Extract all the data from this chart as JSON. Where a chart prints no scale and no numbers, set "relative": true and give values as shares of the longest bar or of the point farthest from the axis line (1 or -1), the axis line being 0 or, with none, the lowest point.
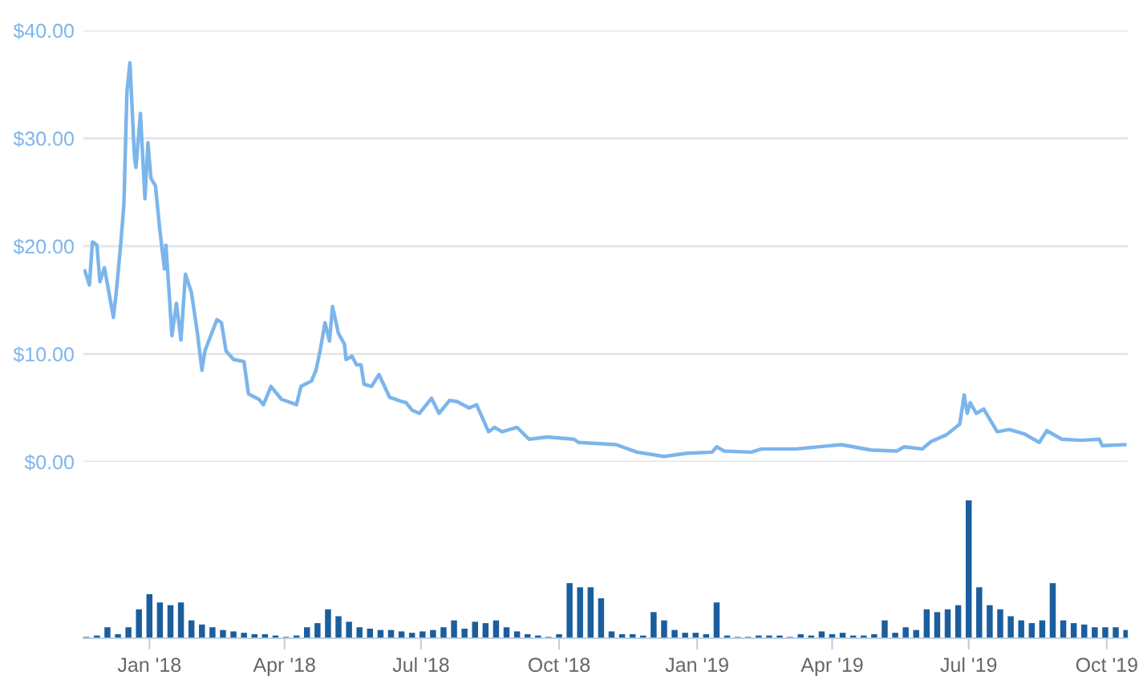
{
  "chart_data": [
    {
      "type": "line",
      "grid": "y",
      "tick_labels": "y",
      "xlim": [
        "2017-11-18",
        "2019-10-15"
      ],
      "ylim": [
        0,
        40
      ],
      "yticks": [
        {
          "value": 0,
          "label": "$0.00"
        },
        {
          "value": 10,
          "label": "$10.00"
        },
        {
          "value": 20,
          "label": "$20.00"
        },
        {
          "value": 30,
          "label": "$30.00"
        },
        {
          "value": 40,
          "label": "$40.00"
        }
      ],
      "series": [
        {
          "color": "#7cb5ec",
          "x": [
            "2017-11-19",
            "2017-11-22",
            "2017-11-24",
            "2017-11-27",
            "2017-11-29",
            "2017-12-02",
            "2017-12-08",
            "2017-12-10",
            "2017-12-13",
            "2017-12-15",
            "2017-12-17",
            "2017-12-19",
            "2017-12-22",
            "2017-12-23",
            "2017-12-26",
            "2017-12-29",
            "2017-12-31",
            "2018-01-02",
            "2018-01-05",
            "2018-01-08",
            "2018-01-11",
            "2018-01-12",
            "2018-01-16",
            "2018-01-19",
            "2018-01-22",
            "2018-01-25",
            "2018-01-29",
            "2018-02-02",
            "2018-02-05",
            "2018-02-07",
            "2018-02-15",
            "2018-02-18",
            "2018-02-21",
            "2018-02-26",
            "2018-03-05",
            "2018-03-08",
            "2018-03-15",
            "2018-03-18",
            "2018-03-23",
            "2018-03-30",
            "2018-04-09",
            "2018-04-12",
            "2018-04-19",
            "2018-04-22",
            "2018-04-25",
            "2018-04-28",
            "2018-05-01",
            "2018-05-03",
            "2018-05-07",
            "2018-05-11",
            "2018-05-12",
            "2018-05-16",
            "2018-05-19",
            "2018-05-22",
            "2018-05-24",
            "2018-05-29",
            "2018-06-03",
            "2018-06-10",
            "2018-06-18",
            "2018-06-21",
            "2018-06-25",
            "2018-06-30",
            "2018-07-08",
            "2018-07-13",
            "2018-07-20",
            "2018-07-25",
            "2018-08-02",
            "2018-08-07",
            "2018-08-15",
            "2018-08-19",
            "2018-08-24",
            "2018-09-03",
            "2018-09-11",
            "2018-09-23",
            "2018-10-11",
            "2018-10-14",
            "2018-11-08",
            "2018-11-22",
            "2018-12-10",
            "2018-12-25",
            "2019-01-11",
            "2019-01-14",
            "2019-01-19",
            "2019-02-06",
            "2019-02-13",
            "2019-03-08",
            "2019-04-07",
            "2019-04-27",
            "2019-05-14",
            "2019-05-19",
            "2019-05-31",
            "2019-06-06",
            "2019-06-16",
            "2019-06-25",
            "2019-06-28",
            "2019-06-30",
            "2019-07-02",
            "2019-07-06",
            "2019-07-11",
            "2019-07-20",
            "2019-07-28",
            "2019-08-07",
            "2019-08-17",
            "2019-08-22",
            "2019-09-01",
            "2019-09-14",
            "2019-09-26",
            "2019-09-28",
            "2019-10-13"
          ],
          "values": [
            17.7,
            16.4,
            20.4,
            20.1,
            16.7,
            18.0,
            13.4,
            15.9,
            20.4,
            23.9,
            34.3,
            37.0,
            28.3,
            27.3,
            32.3,
            24.4,
            29.6,
            26.3,
            25.6,
            21.4,
            17.9,
            20.1,
            11.7,
            14.7,
            11.3,
            17.4,
            15.7,
            11.9,
            8.5,
            10.3,
            13.2,
            12.9,
            10.3,
            9.5,
            9.3,
            6.3,
            5.8,
            5.3,
            7.0,
            5.8,
            5.3,
            7.0,
            7.5,
            8.5,
            10.5,
            12.9,
            11.2,
            14.4,
            11.9,
            10.9,
            9.5,
            9.8,
            9.0,
            9.0,
            7.2,
            7.0,
            8.1,
            6.0,
            5.6,
            5.5,
            4.8,
            4.5,
            5.9,
            4.5,
            5.7,
            5.6,
            5.0,
            5.3,
            2.8,
            3.2,
            2.8,
            3.2,
            2.1,
            2.3,
            2.1,
            1.8,
            1.6,
            0.9,
            0.5,
            0.8,
            0.9,
            1.4,
            1.0,
            0.9,
            1.2,
            1.2,
            1.6,
            1.1,
            1.0,
            1.4,
            1.2,
            1.9,
            2.5,
            3.5,
            6.2,
            4.5,
            5.5,
            4.5,
            4.9,
            2.8,
            3.0,
            2.6,
            1.8,
            2.9,
            2.1,
            2.0,
            2.1,
            1.5,
            1.6
          ]
        }
      ]
    },
    {
      "type": "bar",
      "relative": true,
      "grid": false,
      "tick_labels": "x",
      "xlim": [
        "2017-11-18",
        "2019-10-15"
      ],
      "xticks": [
        {
          "value": "2018-01-01",
          "label": "Jan '18"
        },
        {
          "value": "2018-04-01",
          "label": "Apr '18"
        },
        {
          "value": "2018-07-01",
          "label": "Jul '18"
        },
        {
          "value": "2018-10-01",
          "label": "Oct '18"
        },
        {
          "value": "2019-01-01",
          "label": "Jan '19"
        },
        {
          "value": "2019-04-01",
          "label": "Apr '19"
        },
        {
          "value": "2019-07-01",
          "label": "Jul '19"
        },
        {
          "value": "2019-10-01",
          "label": "Oct '19"
        }
      ],
      "series": [
        {
          "color": "#1b5e9e",
          "x": [
            "2017-11-20",
            "2017-11-27",
            "2017-12-04",
            "2017-12-11",
            "2017-12-18",
            "2017-12-25",
            "2018-01-01",
            "2018-01-08",
            "2018-01-15",
            "2018-01-22",
            "2018-01-29",
            "2018-02-05",
            "2018-02-12",
            "2018-02-19",
            "2018-02-26",
            "2018-03-05",
            "2018-03-12",
            "2018-03-19",
            "2018-03-26",
            "2018-04-02",
            "2018-04-09",
            "2018-04-16",
            "2018-04-23",
            "2018-04-30",
            "2018-05-07",
            "2018-05-14",
            "2018-05-21",
            "2018-05-28",
            "2018-06-04",
            "2018-06-11",
            "2018-06-18",
            "2018-06-25",
            "2018-07-02",
            "2018-07-09",
            "2018-07-16",
            "2018-07-23",
            "2018-07-30",
            "2018-08-06",
            "2018-08-13",
            "2018-08-20",
            "2018-08-27",
            "2018-09-03",
            "2018-09-10",
            "2018-09-17",
            "2018-09-24",
            "2018-10-01",
            "2018-10-08",
            "2018-10-15",
            "2018-10-22",
            "2018-10-29",
            "2018-11-05",
            "2018-11-12",
            "2018-11-19",
            "2018-11-26",
            "2018-12-03",
            "2018-12-10",
            "2018-12-17",
            "2018-12-24",
            "2018-12-31",
            "2019-01-07",
            "2019-01-14",
            "2019-01-21",
            "2019-01-28",
            "2019-02-04",
            "2019-02-11",
            "2019-02-18",
            "2019-02-25",
            "2019-03-04",
            "2019-03-11",
            "2019-03-18",
            "2019-03-25",
            "2019-04-01",
            "2019-04-08",
            "2019-04-15",
            "2019-04-22",
            "2019-04-29",
            "2019-05-06",
            "2019-05-13",
            "2019-05-20",
            "2019-05-27",
            "2019-06-03",
            "2019-06-10",
            "2019-06-17",
            "2019-06-24",
            "2019-07-01",
            "2019-07-08",
            "2019-07-15",
            "2019-07-22",
            "2019-07-29",
            "2019-08-05",
            "2019-08-12",
            "2019-08-19",
            "2019-08-26",
            "2019-09-02",
            "2019-09-09",
            "2019-09-16",
            "2019-09-23",
            "2019-09-30",
            "2019-10-07",
            "2019-10-14"
          ],
          "values": [
            0.01,
            0.02,
            0.08,
            0.03,
            0.08,
            0.21,
            0.32,
            0.26,
            0.24,
            0.26,
            0.13,
            0.1,
            0.08,
            0.06,
            0.05,
            0.04,
            0.03,
            0.03,
            0.02,
            0.01,
            0.02,
            0.08,
            0.11,
            0.21,
            0.16,
            0.12,
            0.08,
            0.07,
            0.06,
            0.06,
            0.05,
            0.04,
            0.05,
            0.06,
            0.08,
            0.13,
            0.07,
            0.12,
            0.11,
            0.13,
            0.08,
            0.05,
            0.03,
            0.02,
            0.01,
            0.03,
            0.4,
            0.37,
            0.37,
            0.29,
            0.05,
            0.03,
            0.03,
            0.02,
            0.19,
            0.13,
            0.06,
            0.04,
            0.04,
            0.03,
            0.26,
            0.02,
            0.01,
            0.01,
            0.02,
            0.02,
            0.02,
            0.01,
            0.03,
            0.02,
            0.05,
            0.03,
            0.04,
            0.02,
            0.02,
            0.03,
            0.13,
            0.04,
            0.08,
            0.06,
            0.21,
            0.19,
            0.21,
            0.24,
            1,
            0.37,
            0.24,
            0.21,
            0.16,
            0.13,
            0.11,
            0.13,
            0.4,
            0.13,
            0.11,
            0.1,
            0.08,
            0.08,
            0.08,
            0.06
          ]
        }
      ]
    }
  ]
}
